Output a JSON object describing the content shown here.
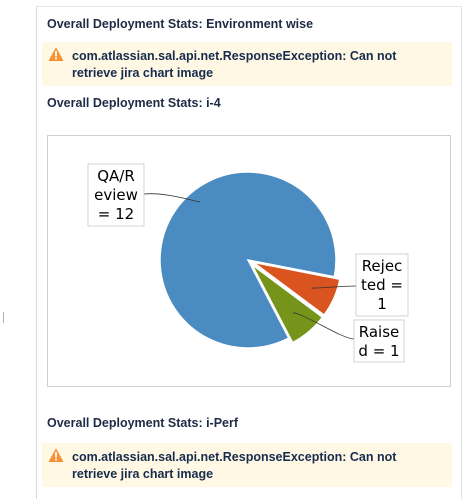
{
  "sections": [
    {
      "title": "Overall Deployment Stats: Environment wise",
      "warning": {
        "icon": "warning-triangle-icon",
        "color": "#f79232",
        "line1": "com.atlassian.sal.api.net.ResponseException: Can not",
        "line2": "retrieve jira chart image"
      }
    },
    {
      "title": "Overall Deployment Stats: i-4"
    },
    {
      "title": "Overall Deployment Stats: i-Perf",
      "warning": {
        "icon": "warning-triangle-icon",
        "color": "#f79232",
        "line1": "com.atlassian.sal.api.net.ResponseException: Can not",
        "line2": "retrieve jira chart image"
      }
    }
  ],
  "chart_data": {
    "type": "pie",
    "title": "",
    "categories": [
      "QA/Review",
      "Rejected",
      "Raised"
    ],
    "values": [
      12,
      1,
      1
    ],
    "colors": [
      "#4a8bc2",
      "#d9541e",
      "#76941a"
    ],
    "labels": [
      [
        "QA/R",
        "eview",
        "= 12"
      ],
      [
        "Rejec",
        "ted =",
        "1"
      ],
      [
        "Raise",
        "d = 1"
      ]
    ],
    "legend": "none",
    "exploded": "Rejected, Raised"
  }
}
